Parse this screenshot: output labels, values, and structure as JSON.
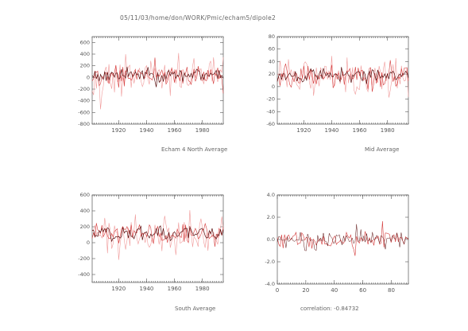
{
  "page_title": "05/11/03/home/don/WORK/Pmic/echam5/dipole2",
  "colors": {
    "series_dark": "#5a1010",
    "series_red": "#d43a3a",
    "series_pink": "#f09a9a",
    "axis": "#555555"
  },
  "chart_data": [
    {
      "id": "north",
      "type": "line",
      "caption": "Echam 4 North Average",
      "xlim": [
        1901,
        1995
      ],
      "ylim": [
        -800,
        700
      ],
      "xticks": [
        "1920",
        "1940",
        "1960",
        "1980"
      ],
      "yticks": [
        "600",
        "400",
        "200",
        "0",
        "-200",
        "-400",
        "-600",
        "-800"
      ],
      "series_count": 3,
      "grid": false
    },
    {
      "id": "mid",
      "type": "line",
      "caption": "Mid Average",
      "xlim": [
        1901,
        1995
      ],
      "ylim": [
        -60,
        80
      ],
      "xticks": [
        "1920",
        "1940",
        "1960",
        "1980"
      ],
      "yticks": [
        "80",
        "60",
        "40",
        "20",
        "0",
        "-20",
        "-40",
        "-60"
      ],
      "series_count": 3,
      "grid": false
    },
    {
      "id": "south",
      "type": "line",
      "caption": "South Average",
      "xlim": [
        1901,
        1995
      ],
      "ylim": [
        -500,
        600
      ],
      "xticks": [
        "1920",
        "1940",
        "1960",
        "1980"
      ],
      "yticks": [
        "600",
        "400",
        "200",
        "0",
        "-200",
        "-400"
      ],
      "series_count": 3,
      "grid": false
    },
    {
      "id": "correlation",
      "type": "line",
      "caption": "correlation: -0.84732",
      "xlim": [
        0,
        92
      ],
      "ylim": [
        -4,
        4
      ],
      "xticks": [
        "0",
        "20",
        "40",
        "60",
        "80"
      ],
      "yticks": [
        "4.0",
        "2.0",
        "0.0",
        "-2.0",
        "-4.0"
      ],
      "series_count": 2,
      "grid": false
    }
  ]
}
